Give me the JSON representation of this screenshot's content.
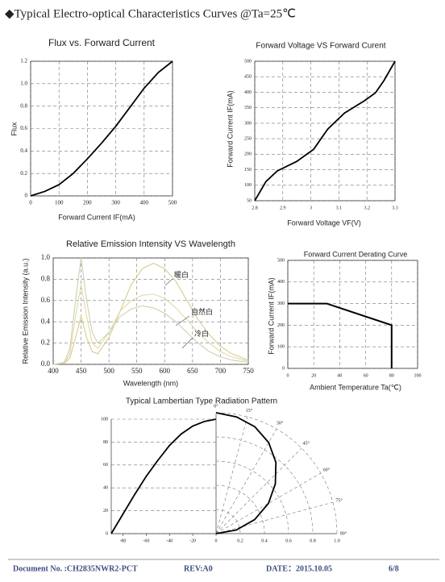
{
  "header": {
    "title": "◆Typical Electro-optical Characteristics Curves @Ta=25℃"
  },
  "chart_data": [
    {
      "type": "line",
      "title": "Flux vs. Forward Current",
      "x_label": "Forward Current IF(mA)",
      "y_label": "Flux",
      "x": [
        0,
        50,
        100,
        150,
        200,
        250,
        300,
        350,
        400,
        450,
        500
      ],
      "values": [
        0,
        0.04,
        0.1,
        0.2,
        0.33,
        0.47,
        0.62,
        0.79,
        0.96,
        1.1,
        1.2
      ],
      "color": "#000000",
      "xlim": [
        0,
        500
      ],
      "xticks": [
        0,
        100,
        200,
        300,
        400,
        500
      ],
      "ylim": [
        0,
        1.2
      ],
      "yticks": [
        0,
        0.2,
        0.4,
        0.6,
        0.8,
        {
          "value": 1,
          "label": "1.0"
        },
        1.2
      ],
      "grid": true
    },
    {
      "type": "line",
      "title": "Forward Voltage VS Forward Curent",
      "x_label": "Forward Voltage VF(V)",
      "y_label": "Forward Current IF(mA)",
      "x": [
        2.8,
        2.84,
        2.88,
        2.95,
        3.01,
        3.06,
        3.12,
        3.19,
        3.23,
        3.26,
        3.3
      ],
      "values": [
        50,
        112,
        146,
        177,
        216,
        281,
        333,
        372,
        398,
        437,
        500
      ],
      "color": "#000000",
      "xlim": [
        2.8,
        3.3
      ],
      "xticks": [
        2.8,
        2.9,
        3,
        3.1,
        3.2,
        3.3
      ],
      "ylim": [
        50,
        500
      ],
      "yticks": [
        50,
        100,
        150,
        200,
        250,
        300,
        350,
        400,
        450,
        500
      ],
      "grid": true
    },
    {
      "type": "line",
      "title": "Relative Emission Intensity VS Wavelength",
      "x_label": "Wavelength (nm)",
      "y_label": "Relative Emission Intensity (a.u.)",
      "x": [
        400,
        420,
        430,
        440,
        450,
        460,
        470,
        480,
        500,
        520,
        540,
        560,
        580,
        600,
        620,
        640,
        660,
        680,
        700,
        720,
        750
      ],
      "series": [
        {
          "name": "暖白",
          "color": "#d8cc8e",
          "values": [
            0,
            0.01,
            0.06,
            0.25,
            0.45,
            0.25,
            0.12,
            0.1,
            0.25,
            0.5,
            0.75,
            0.9,
            0.95,
            0.9,
            0.78,
            0.6,
            0.42,
            0.28,
            0.17,
            0.1,
            0.04
          ]
        },
        {
          "name": "自然白",
          "color": "#e2daa8",
          "values": [
            0,
            0.01,
            0.1,
            0.45,
            0.75,
            0.45,
            0.2,
            0.15,
            0.3,
            0.5,
            0.6,
            0.65,
            0.66,
            0.62,
            0.53,
            0.42,
            0.3,
            0.2,
            0.12,
            0.07,
            0.03
          ]
        },
        {
          "name": "冷白",
          "color": "#ccd0b4",
          "values": [
            0,
            0.02,
            0.15,
            0.6,
            1,
            0.6,
            0.3,
            0.2,
            0.3,
            0.45,
            0.52,
            0.55,
            0.53,
            0.48,
            0.4,
            0.3,
            0.2,
            0.12,
            0.07,
            0.04,
            0.02
          ]
        }
      ],
      "xlim": [
        400,
        750
      ],
      "xticks": [
        400,
        450,
        500,
        550,
        600,
        650,
        700,
        750
      ],
      "ylim": [
        0,
        1
      ],
      "yticks": [
        {
          "value": 0,
          "label": "0.0"
        },
        0.2,
        0.4,
        0.6,
        0.8,
        {
          "value": 1,
          "label": "1.0"
        }
      ],
      "grid": true
    },
    {
      "type": "line",
      "title": "Forward Current Derating Curve",
      "x_label": "Ambient Temperature Ta(℃)",
      "y_label": "Forward Current IF(mA)",
      "x": [
        0,
        30,
        80,
        80
      ],
      "values": [
        300,
        300,
        200,
        0
      ],
      "color": "#000000",
      "xlim": [
        0,
        100
      ],
      "xticks": [
        0,
        20,
        40,
        60,
        80,
        100
      ],
      "ylim": [
        0,
        500
      ],
      "yticks": [
        0,
        100,
        200,
        300,
        400,
        500
      ],
      "grid": true
    },
    {
      "type": "polar",
      "title": "Typical Lambertian Type Radiation Pattern",
      "left": {
        "x": [
          -90,
          -80,
          -70,
          -60,
          -50,
          -40,
          -30,
          -20,
          -10,
          0
        ],
        "values": [
          0,
          17,
          34,
          50,
          64,
          77,
          87,
          94,
          98,
          100
        ],
        "xlim": [
          -90,
          0
        ],
        "xticks": [
          -80,
          -60,
          -40,
          -20,
          0
        ],
        "ylim": [
          0,
          100
        ],
        "yticks": [
          0,
          20,
          40,
          60,
          80,
          100
        ]
      },
      "polar": {
        "theta": [
          0,
          10,
          20,
          30,
          40,
          50,
          60,
          70,
          80,
          90
        ],
        "r": [
          1,
          0.98,
          0.94,
          0.87,
          0.77,
          0.64,
          0.5,
          0.34,
          0.17,
          0
        ],
        "rlim": [
          0,
          1
        ],
        "rticks": [
          0.2,
          0.4,
          0.6,
          0.8,
          {
            "value": 1,
            "label": "1.0"
          }
        ],
        "thetaticks": [
          {
            "value": 0,
            "label": "0°"
          },
          {
            "value": 15,
            "label": "15°"
          },
          {
            "value": 30,
            "label": "30°"
          },
          {
            "value": 45,
            "label": "45°"
          },
          {
            "value": 60,
            "label": "60°"
          },
          {
            "value": 75,
            "label": "75°"
          },
          {
            "value": 90,
            "label": "90°"
          }
        ]
      },
      "color": "#000000"
    }
  ],
  "footer": {
    "document": "Document No. :CH2835NWR2-PCT",
    "rev": "REV:A0",
    "date": "DATE：2015.10.05",
    "page": "6/8"
  }
}
